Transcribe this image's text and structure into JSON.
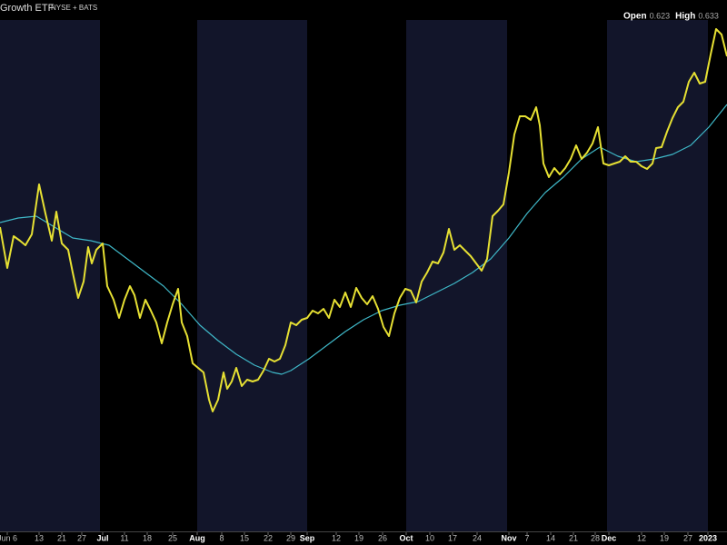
{
  "chart_data": {
    "type": "line",
    "title": "Growth ETF",
    "subtitle": "NYSE + BATS",
    "quote": [
      {
        "label": "Open",
        "value": 0.623
      },
      {
        "label": "High",
        "value": 0.633
      }
    ],
    "xlim": [
      0,
      160
    ],
    "ylim": [
      0.4,
      0.64
    ],
    "xticks": [
      {
        "value": 1.6,
        "label": "Jun 6"
      },
      {
        "value": 8.6,
        "label": "13"
      },
      {
        "value": 13.6,
        "label": "21"
      },
      {
        "value": 18,
        "label": "27"
      },
      {
        "value": 22.6,
        "label": "Jul"
      },
      {
        "value": 27.4,
        "label": "11"
      },
      {
        "value": 32.4,
        "label": "18"
      },
      {
        "value": 38,
        "label": "25"
      },
      {
        "value": 43.4,
        "label": "Aug"
      },
      {
        "value": 48.8,
        "label": "8"
      },
      {
        "value": 53.8,
        "label": "15"
      },
      {
        "value": 59,
        "label": "22"
      },
      {
        "value": 64,
        "label": "29"
      },
      {
        "value": 67.6,
        "label": "Sep"
      },
      {
        "value": 74,
        "label": "12"
      },
      {
        "value": 79,
        "label": "19"
      },
      {
        "value": 84.2,
        "label": "26"
      },
      {
        "value": 89.4,
        "label": "Oct"
      },
      {
        "value": 94.6,
        "label": "10"
      },
      {
        "value": 99.6,
        "label": "17"
      },
      {
        "value": 105,
        "label": "24"
      },
      {
        "value": 112,
        "label": "Nov"
      },
      {
        "value": 116,
        "label": "7"
      },
      {
        "value": 121.2,
        "label": "14"
      },
      {
        "value": 126.2,
        "label": "21"
      },
      {
        "value": 131,
        "label": "28"
      },
      {
        "value": 134,
        "label": "Dec"
      },
      {
        "value": 141.2,
        "label": "12"
      },
      {
        "value": 146.2,
        "label": "19"
      },
      {
        "value": 151.4,
        "label": "27"
      },
      {
        "value": 155.8,
        "label": "2023"
      }
    ],
    "series": [
      {
        "color": "#e6e033",
        "x": [
          0,
          1.6,
          3,
          4.4,
          5.6,
          7,
          8.6,
          10,
          11.4,
          12.4,
          13.6,
          15,
          16,
          17.2,
          18.4,
          19.4,
          20.2,
          21.2,
          22.6,
          23.6,
          25,
          26.2,
          27.4,
          28.6,
          29.6,
          30.8,
          32,
          33.2,
          34.4,
          35.6,
          36.8,
          38,
          39.2,
          40,
          41.2,
          42.4,
          43.6,
          44.8,
          46,
          46.8,
          48,
          49.2,
          50,
          51,
          52,
          53.2,
          54.4,
          55.6,
          56.8,
          58,
          59.2,
          60.4,
          61.6,
          62.8,
          64,
          65.2,
          66.4,
          67.6,
          68.8,
          70,
          71.2,
          72.4,
          73.6,
          74.8,
          76,
          77.2,
          78.4,
          79.6,
          80.8,
          82,
          83.2,
          84.4,
          85.6,
          86.8,
          88,
          89.2,
          90.4,
          91.6,
          92.8,
          94,
          95.2,
          96.4,
          97.6,
          98.8,
          100,
          101.2,
          102.4,
          103.6,
          104.8,
          106,
          107.2,
          108.4,
          109.6,
          110.8,
          112,
          113.2,
          114.4,
          115.6,
          116.8,
          118,
          118.8,
          119.6,
          120.8,
          122,
          123.2,
          124.4,
          125.6,
          126.8,
          128,
          129.2,
          130.4,
          131.6,
          132.8,
          134,
          135.2,
          136.4,
          137.6,
          138.8,
          140,
          141.2,
          142.4,
          143.6,
          144.4,
          145.6,
          146.8,
          148,
          149.2,
          150.4,
          151.6,
          152.8,
          154,
          155.2,
          156.4,
          157.6,
          158.8,
          160
        ],
        "values": [
          0.54,
          0.522,
          0.536,
          0.534,
          0.532,
          0.5368,
          0.5588,
          0.546,
          0.534,
          0.5468,
          0.5328,
          0.53,
          0.52,
          0.5088,
          0.516,
          0.5312,
          0.524,
          0.53,
          0.5328,
          0.514,
          0.508,
          0.5,
          0.508,
          0.514,
          0.51,
          0.5,
          0.508,
          0.5032,
          0.498,
          0.4888,
          0.498,
          0.506,
          0.5128,
          0.498,
          0.492,
          0.48,
          0.478,
          0.476,
          0.464,
          0.4588,
          0.464,
          0.476,
          0.4688,
          0.472,
          0.478,
          0.47,
          0.4728,
          0.472,
          0.4728,
          0.4768,
          0.482,
          0.4808,
          0.482,
          0.488,
          0.498,
          0.4968,
          0.4992,
          0.5,
          0.5032,
          0.502,
          0.504,
          0.5,
          0.508,
          0.5048,
          0.5112,
          0.5048,
          0.5132,
          0.5088,
          0.506,
          0.5096,
          0.504,
          0.496,
          0.492,
          0.502,
          0.5088,
          0.5128,
          0.512,
          0.5068,
          0.516,
          0.52,
          0.5248,
          0.524,
          0.5288,
          0.5392,
          0.53,
          0.532,
          0.5296,
          0.5272,
          0.524,
          0.5208,
          0.526,
          0.5448,
          0.5472,
          0.55,
          0.564,
          0.5808,
          0.5888,
          0.5888,
          0.5872,
          0.5928,
          0.5848,
          0.568,
          0.562,
          0.566,
          0.5632,
          0.566,
          0.57,
          0.576,
          0.57,
          0.5728,
          0.5768,
          0.584,
          0.568,
          0.5672,
          0.568,
          0.5688,
          0.5712,
          0.5688,
          0.5688,
          0.5668,
          0.5656,
          0.568,
          0.5748,
          0.5752,
          0.582,
          0.588,
          0.5928,
          0.5952,
          0.604,
          0.608,
          0.6032,
          0.604,
          0.616,
          0.6272,
          0.6248,
          0.6152
        ]
      },
      {
        "color": "#3fb8c8",
        "x": [
          0,
          4,
          8,
          12,
          16,
          20,
          24,
          28,
          32,
          36,
          40,
          44,
          48,
          52,
          56,
          60,
          62,
          64,
          68,
          72,
          76,
          80,
          84,
          88,
          92,
          96,
          100,
          104,
          108,
          112,
          116,
          120,
          124,
          128,
          132,
          136,
          140,
          144,
          148,
          152,
          156,
          160
        ],
        "values": [
          0.542,
          0.544,
          0.5448,
          0.54,
          0.5352,
          0.534,
          0.532,
          0.526,
          0.52,
          0.514,
          0.506,
          0.4968,
          0.49,
          0.484,
          0.4792,
          0.476,
          0.4752,
          0.4768,
          0.482,
          0.488,
          0.494,
          0.4992,
          0.5032,
          0.5056,
          0.5072,
          0.5112,
          0.5152,
          0.52,
          0.526,
          0.5352,
          0.546,
          0.5552,
          0.562,
          0.57,
          0.5752,
          0.5712,
          0.5688,
          0.57,
          0.572,
          0.576,
          0.584,
          0.594
        ]
      }
    ]
  }
}
